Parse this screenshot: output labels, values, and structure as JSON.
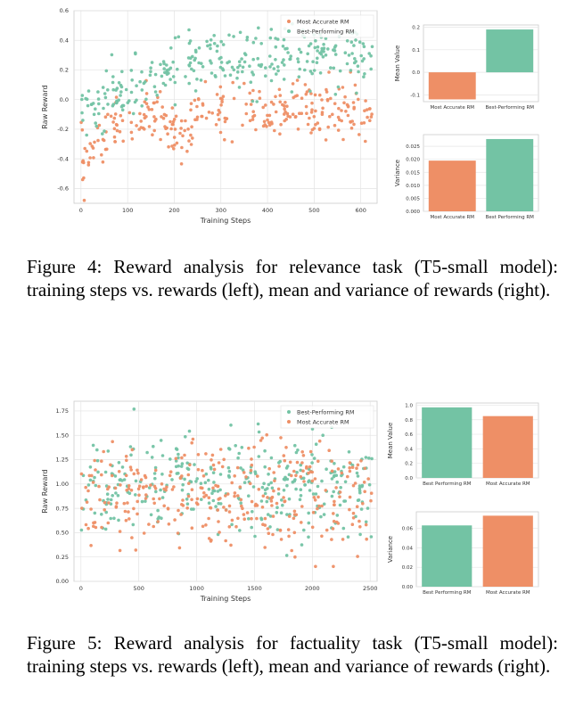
{
  "figure4": {
    "caption": "Figure 4:  Reward analysis for relevance task (T5-small model): training steps vs. rewards (left), mean and variance of rewards (right).",
    "colors": {
      "accurate": "#ee8f66",
      "performing": "#73c3a4"
    }
  },
  "figure5": {
    "caption": "Figure 5:  Reward analysis for factuality task (T5-small model): training steps vs. rewards (left), mean and variance of rewards (right).",
    "colors": {
      "accurate": "#ee8f66",
      "performing": "#73c3a4"
    }
  },
  "chart_data": [
    {
      "id": "f4_scatter",
      "type": "scatter",
      "xlabel": "Training Steps",
      "ylabel": "Raw Reward",
      "xlim": [
        -15,
        635
      ],
      "ylim": [
        -0.7,
        0.6
      ],
      "xticks": [
        0,
        100,
        200,
        300,
        400,
        500,
        600
      ],
      "yticks": [
        -0.6,
        -0.4,
        -0.2,
        0.0,
        0.2,
        0.4,
        0.6
      ],
      "ytick_labels": [
        "-0.6",
        "-0.4",
        "-0.2",
        "0.0",
        "0.2",
        "0.4",
        "0.6"
      ],
      "legend_position": "top-right",
      "grid": true,
      "series": [
        {
          "name": "Most Accurate RM",
          "color": "#ee8f66",
          "anchors": [
            [
              0,
              -0.4
            ],
            [
              30,
              -0.35
            ],
            [
              60,
              -0.22
            ],
            [
              100,
              -0.15
            ],
            [
              150,
              -0.1
            ],
            [
              190,
              -0.2
            ],
            [
              220,
              -0.22
            ],
            [
              260,
              -0.08
            ],
            [
              300,
              -0.05
            ],
            [
              400,
              -0.07
            ],
            [
              500,
              -0.06
            ],
            [
              620,
              -0.08
            ]
          ],
          "spread": 0.09,
          "count": 300,
          "xmin": 0,
          "xmax": 625
        },
        {
          "name": "Best-Performing RM",
          "color": "#73c3a4",
          "anchors": [
            [
              0,
              -0.1
            ],
            [
              40,
              -0.05
            ],
            [
              80,
              0.02
            ],
            [
              120,
              0.08
            ],
            [
              170,
              0.15
            ],
            [
              210,
              0.22
            ],
            [
              260,
              0.25
            ],
            [
              300,
              0.26
            ],
            [
              400,
              0.28
            ],
            [
              500,
              0.3
            ],
            [
              620,
              0.3
            ]
          ],
          "spread": 0.1,
          "count": 300,
          "xmin": 0,
          "xmax": 625
        }
      ]
    },
    {
      "id": "f4_mean",
      "type": "bar",
      "ylabel": "Mean Value",
      "categories": [
        "Most Accurate RM",
        "Best-Performing RM"
      ],
      "values": [
        -0.12,
        0.19
      ],
      "colors": [
        "#ee8f66",
        "#73c3a4"
      ],
      "ylim": [
        -0.13,
        0.21
      ],
      "yticks": [
        -0.1,
        0.0,
        0.1,
        0.2
      ],
      "ytick_labels": [
        "-0.1",
        "0.0",
        "0.1",
        "0.2"
      ]
    },
    {
      "id": "f4_var",
      "type": "bar",
      "ylabel": "Variance",
      "categories": [
        "Most Accurate RM",
        "Best Performing RM"
      ],
      "values": [
        0.0195,
        0.0278
      ],
      "colors": [
        "#ee8f66",
        "#73c3a4"
      ],
      "ylim": [
        0,
        0.0295
      ],
      "yticks": [
        0,
        0.005,
        0.01,
        0.015,
        0.02,
        0.025
      ],
      "ytick_labels": [
        "0.000",
        "0.005",
        "0.010",
        "0.015",
        "0.020",
        "0.025"
      ]
    },
    {
      "id": "f5_scatter",
      "type": "scatter",
      "xlabel": "Training Steps",
      "ylabel": "Raw Reward",
      "xlim": [
        -60,
        2560
      ],
      "ylim": [
        0,
        1.85
      ],
      "xticks": [
        0,
        500,
        1000,
        1500,
        2000,
        2500
      ],
      "yticks": [
        0,
        0.25,
        0.5,
        0.75,
        1.0,
        1.25,
        1.5,
        1.75
      ],
      "ytick_labels": [
        "0.00",
        "0.25",
        "0.50",
        "0.75",
        "1.00",
        "1.25",
        "1.50",
        "1.75"
      ],
      "legend_position": "top-right",
      "grid": true,
      "series": [
        {
          "name": "Best-Performing RM",
          "color": "#73c3a4",
          "anchors": [
            [
              0,
              0.98
            ],
            [
              2500,
              0.98
            ]
          ],
          "spread": 0.25,
          "count": 330,
          "xmin": 0,
          "xmax": 2520
        },
        {
          "name": "Most Accurate RM",
          "color": "#ee8f66",
          "anchors": [
            [
              0,
              0.86
            ],
            [
              2500,
              0.86
            ]
          ],
          "spread": 0.27,
          "count": 330,
          "xmin": 0,
          "xmax": 2520
        }
      ]
    },
    {
      "id": "f5_mean",
      "type": "bar",
      "ylabel": "Mean Value",
      "categories": [
        "Best Performing RM",
        "Most Accurate RM"
      ],
      "values": [
        0.97,
        0.85
      ],
      "colors": [
        "#73c3a4",
        "#ee8f66"
      ],
      "ylim": [
        0,
        1.03
      ],
      "yticks": [
        0,
        0.2,
        0.4,
        0.6,
        0.8,
        1.0
      ],
      "ytick_labels": [
        "0.0",
        "0.2",
        "0.4",
        "0.6",
        "0.8",
        "1.0"
      ]
    },
    {
      "id": "f5_var",
      "type": "bar",
      "ylabel": "Variance",
      "categories": [
        "Best Performing RM",
        "Most Accurate RM"
      ],
      "values": [
        0.063,
        0.073
      ],
      "colors": [
        "#73c3a4",
        "#ee8f66"
      ],
      "ylim": [
        0,
        0.077
      ],
      "yticks": [
        0,
        0.02,
        0.04,
        0.06
      ],
      "ytick_labels": [
        "0.00",
        "0.02",
        "0.04",
        "0.06"
      ]
    }
  ]
}
